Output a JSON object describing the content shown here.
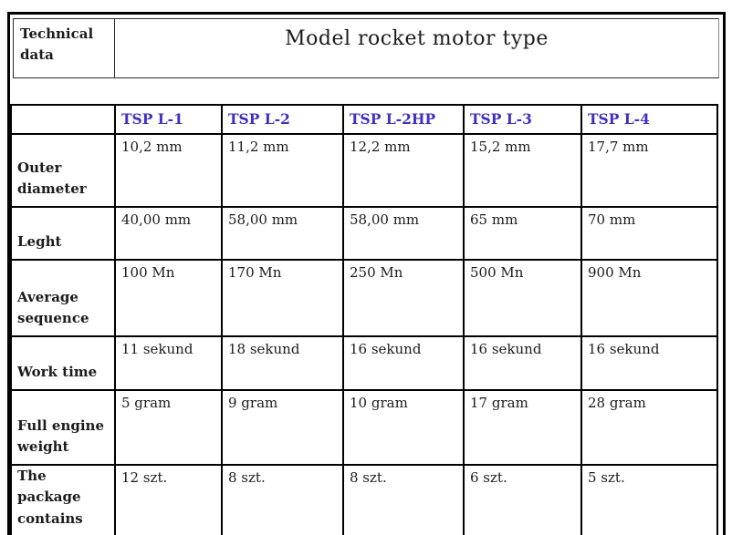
{
  "header": {
    "corner_label": "Technical data",
    "title": "Model rocket motor type"
  },
  "table": {
    "columns": [
      "TSP L-1",
      "TSP L-2",
      "TSP L-2HP",
      "TSP L-3",
      "TSP L-4"
    ],
    "rows": [
      {
        "label": "Outer diameter",
        "values": [
          "10,2 mm",
          "11,2 mm",
          "12,2 mm",
          "15,2 mm",
          "17,7 mm"
        ]
      },
      {
        "label": "Leght",
        "values": [
          "40,00 mm",
          "58,00 mm",
          "58,00 mm",
          "65 mm",
          "70 mm"
        ]
      },
      {
        "label": "Average sequence",
        "values": [
          "100 Mn",
          "170 Mn",
          "250 Mn",
          "500 Mn",
          "900 Mn"
        ]
      },
      {
        "label": "Work time",
        "values": [
          "11 sekund",
          "18 sekund",
          "16 sekund",
          "16 sekund",
          "16 sekund"
        ]
      },
      {
        "label": "Full engine weight",
        "values": [
          "5 gram",
          "9 gram",
          "10 gram",
          "17 gram",
          "28 gram"
        ]
      },
      {
        "label": "The package contains",
        "values": [
          "12 szt.",
          "8 szt.",
          "8 szt.",
          "6 szt.",
          "5 szt."
        ]
      }
    ]
  },
  "colors": {
    "column_header_text": "#3e31c1",
    "body_text": "#1c1c1c",
    "border": "#000000",
    "background": "#ffffff"
  }
}
